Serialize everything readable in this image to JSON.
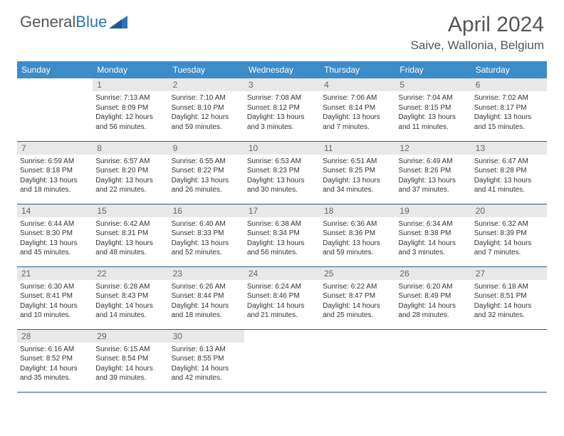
{
  "logo": {
    "text1": "General",
    "text2": "Blue"
  },
  "title": "April 2024",
  "location": "Saive, Wallonia, Belgium",
  "colors": {
    "header_bg": "#3b8cc9",
    "daynum_bg": "#e8e8e8",
    "row_border": "#2a5c85",
    "text": "#333333",
    "title_text": "#555555"
  },
  "dayNames": [
    "Sunday",
    "Monday",
    "Tuesday",
    "Wednesday",
    "Thursday",
    "Friday",
    "Saturday"
  ],
  "weeks": [
    [
      {
        "n": "",
        "sr": "",
        "ss": "",
        "dl": ""
      },
      {
        "n": "1",
        "sr": "Sunrise: 7:13 AM",
        "ss": "Sunset: 8:09 PM",
        "dl": "Daylight: 12 hours and 56 minutes."
      },
      {
        "n": "2",
        "sr": "Sunrise: 7:10 AM",
        "ss": "Sunset: 8:10 PM",
        "dl": "Daylight: 12 hours and 59 minutes."
      },
      {
        "n": "3",
        "sr": "Sunrise: 7:08 AM",
        "ss": "Sunset: 8:12 PM",
        "dl": "Daylight: 13 hours and 3 minutes."
      },
      {
        "n": "4",
        "sr": "Sunrise: 7:06 AM",
        "ss": "Sunset: 8:14 PM",
        "dl": "Daylight: 13 hours and 7 minutes."
      },
      {
        "n": "5",
        "sr": "Sunrise: 7:04 AM",
        "ss": "Sunset: 8:15 PM",
        "dl": "Daylight: 13 hours and 11 minutes."
      },
      {
        "n": "6",
        "sr": "Sunrise: 7:02 AM",
        "ss": "Sunset: 8:17 PM",
        "dl": "Daylight: 13 hours and 15 minutes."
      }
    ],
    [
      {
        "n": "7",
        "sr": "Sunrise: 6:59 AM",
        "ss": "Sunset: 8:18 PM",
        "dl": "Daylight: 13 hours and 18 minutes."
      },
      {
        "n": "8",
        "sr": "Sunrise: 6:57 AM",
        "ss": "Sunset: 8:20 PM",
        "dl": "Daylight: 13 hours and 22 minutes."
      },
      {
        "n": "9",
        "sr": "Sunrise: 6:55 AM",
        "ss": "Sunset: 8:22 PM",
        "dl": "Daylight: 13 hours and 26 minutes."
      },
      {
        "n": "10",
        "sr": "Sunrise: 6:53 AM",
        "ss": "Sunset: 8:23 PM",
        "dl": "Daylight: 13 hours and 30 minutes."
      },
      {
        "n": "11",
        "sr": "Sunrise: 6:51 AM",
        "ss": "Sunset: 8:25 PM",
        "dl": "Daylight: 13 hours and 34 minutes."
      },
      {
        "n": "12",
        "sr": "Sunrise: 6:49 AM",
        "ss": "Sunset: 8:26 PM",
        "dl": "Daylight: 13 hours and 37 minutes."
      },
      {
        "n": "13",
        "sr": "Sunrise: 6:47 AM",
        "ss": "Sunset: 8:28 PM",
        "dl": "Daylight: 13 hours and 41 minutes."
      }
    ],
    [
      {
        "n": "14",
        "sr": "Sunrise: 6:44 AM",
        "ss": "Sunset: 8:30 PM",
        "dl": "Daylight: 13 hours and 45 minutes."
      },
      {
        "n": "15",
        "sr": "Sunrise: 6:42 AM",
        "ss": "Sunset: 8:31 PM",
        "dl": "Daylight: 13 hours and 48 minutes."
      },
      {
        "n": "16",
        "sr": "Sunrise: 6:40 AM",
        "ss": "Sunset: 8:33 PM",
        "dl": "Daylight: 13 hours and 52 minutes."
      },
      {
        "n": "17",
        "sr": "Sunrise: 6:38 AM",
        "ss": "Sunset: 8:34 PM",
        "dl": "Daylight: 13 hours and 56 minutes."
      },
      {
        "n": "18",
        "sr": "Sunrise: 6:36 AM",
        "ss": "Sunset: 8:36 PM",
        "dl": "Daylight: 13 hours and 59 minutes."
      },
      {
        "n": "19",
        "sr": "Sunrise: 6:34 AM",
        "ss": "Sunset: 8:38 PM",
        "dl": "Daylight: 14 hours and 3 minutes."
      },
      {
        "n": "20",
        "sr": "Sunrise: 6:32 AM",
        "ss": "Sunset: 8:39 PM",
        "dl": "Daylight: 14 hours and 7 minutes."
      }
    ],
    [
      {
        "n": "21",
        "sr": "Sunrise: 6:30 AM",
        "ss": "Sunset: 8:41 PM",
        "dl": "Daylight: 14 hours and 10 minutes."
      },
      {
        "n": "22",
        "sr": "Sunrise: 6:28 AM",
        "ss": "Sunset: 8:43 PM",
        "dl": "Daylight: 14 hours and 14 minutes."
      },
      {
        "n": "23",
        "sr": "Sunrise: 6:26 AM",
        "ss": "Sunset: 8:44 PM",
        "dl": "Daylight: 14 hours and 18 minutes."
      },
      {
        "n": "24",
        "sr": "Sunrise: 6:24 AM",
        "ss": "Sunset: 8:46 PM",
        "dl": "Daylight: 14 hours and 21 minutes."
      },
      {
        "n": "25",
        "sr": "Sunrise: 6:22 AM",
        "ss": "Sunset: 8:47 PM",
        "dl": "Daylight: 14 hours and 25 minutes."
      },
      {
        "n": "26",
        "sr": "Sunrise: 6:20 AM",
        "ss": "Sunset: 8:49 PM",
        "dl": "Daylight: 14 hours and 28 minutes."
      },
      {
        "n": "27",
        "sr": "Sunrise: 6:18 AM",
        "ss": "Sunset: 8:51 PM",
        "dl": "Daylight: 14 hours and 32 minutes."
      }
    ],
    [
      {
        "n": "28",
        "sr": "Sunrise: 6:16 AM",
        "ss": "Sunset: 8:52 PM",
        "dl": "Daylight: 14 hours and 35 minutes."
      },
      {
        "n": "29",
        "sr": "Sunrise: 6:15 AM",
        "ss": "Sunset: 8:54 PM",
        "dl": "Daylight: 14 hours and 39 minutes."
      },
      {
        "n": "30",
        "sr": "Sunrise: 6:13 AM",
        "ss": "Sunset: 8:55 PM",
        "dl": "Daylight: 14 hours and 42 minutes."
      },
      {
        "n": "",
        "sr": "",
        "ss": "",
        "dl": ""
      },
      {
        "n": "",
        "sr": "",
        "ss": "",
        "dl": ""
      },
      {
        "n": "",
        "sr": "",
        "ss": "",
        "dl": ""
      },
      {
        "n": "",
        "sr": "",
        "ss": "",
        "dl": ""
      }
    ]
  ]
}
